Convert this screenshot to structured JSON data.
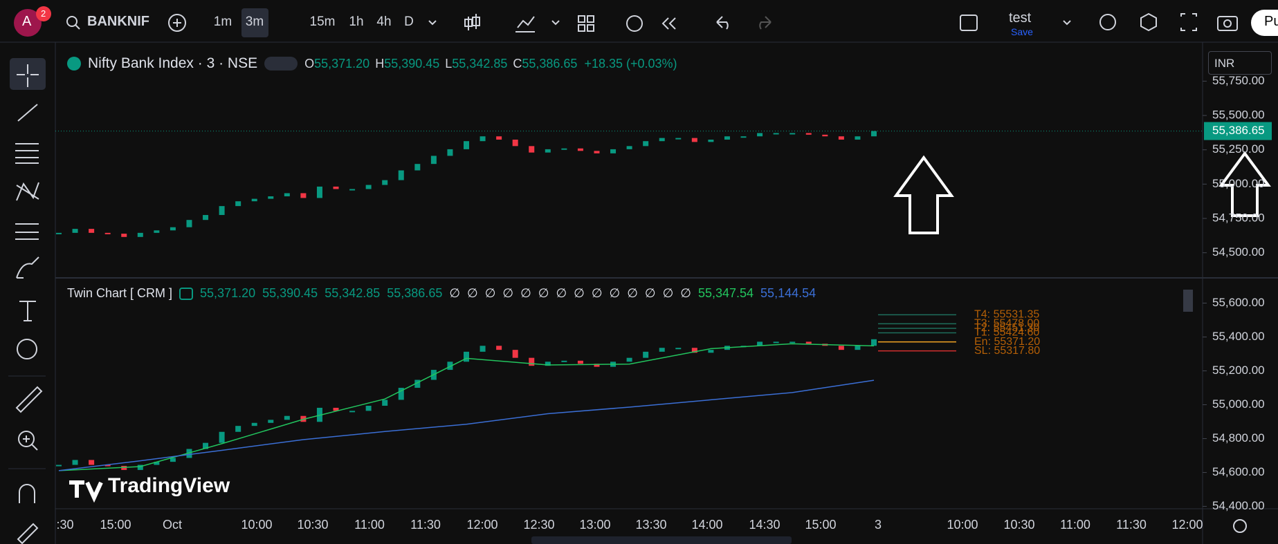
{
  "topbar": {
    "avatar": "A",
    "badge": "2",
    "symbol": "BANKNIF",
    "intervals": [
      "1m",
      "3m",
      "15m",
      "1h",
      "4h",
      "D"
    ],
    "active_interval": "3m",
    "layout_name": "test",
    "save": "Save",
    "publish": "Pu"
  },
  "currency": "INR",
  "watermark": "TradingView",
  "chart_data": [
    {
      "type": "candlestick",
      "title": "Nifty Bank Index · 3 · NSE",
      "ohlc": [
        {
          "key": "O",
          "text": "55,371.20"
        },
        {
          "key": "H",
          "text": "55,390.45"
        },
        {
          "key": "L",
          "text": "55,342.85"
        },
        {
          "key": "C",
          "text": "55,386.65"
        }
      ],
      "change": "+18.35 (+0.03%)",
      "values": [
        54645,
        54674,
        54645,
        54639,
        54615,
        54645,
        54663,
        54686,
        54739,
        54775,
        54840,
        54875,
        54893,
        54911,
        54934,
        54899,
        54982,
        54964,
        54964,
        54994,
        55029,
        55100,
        55147,
        55206,
        55254,
        55313,
        55348,
        55324,
        55277,
        55230,
        55254,
        55260,
        55242,
        55224,
        55254,
        55277,
        55313,
        55336,
        55336,
        55307,
        55324,
        55348,
        55348,
        55372,
        55372,
        55372,
        55360,
        55348,
        55324,
        55348,
        55386.65
      ],
      "up_color": "#089981",
      "down_color": "#f23645",
      "last_price": {
        "value": 55386.65,
        "label": "55,386.65"
      },
      "ylim": [
        54317,
        56034
      ],
      "yticks": [
        {
          "value": 54500,
          "label": "54,500.00"
        },
        {
          "value": 54750,
          "label": "54,750.00"
        },
        {
          "value": 55000,
          "label": "55,000.00"
        },
        {
          "value": 55250,
          "label": "55,250.00"
        },
        {
          "value": 55500,
          "label": "55,500.00"
        },
        {
          "value": 55750,
          "label": "55,750.00"
        }
      ]
    },
    {
      "type": "candlestick",
      "title": "Twin Chart [ CRM ]",
      "ohlc_values": [
        "55,371.20",
        "55,390.45",
        "55,342.85",
        "55,386.65"
      ],
      "empty_markers": [
        "∅",
        "∅",
        "∅",
        "∅",
        "∅",
        "∅",
        "∅",
        "∅",
        "∅",
        "∅",
        "∅",
        "∅",
        "∅",
        "∅"
      ],
      "values": [
        54645,
        54674,
        54645,
        54639,
        54615,
        54645,
        54663,
        54686,
        54739,
        54775,
        54840,
        54875,
        54893,
        54911,
        54934,
        54899,
        54982,
        54964,
        54964,
        54994,
        55029,
        55100,
        55147,
        55206,
        55254,
        55313,
        55348,
        55324,
        55277,
        55230,
        55254,
        55260,
        55242,
        55224,
        55254,
        55277,
        55313,
        55336,
        55336,
        55307,
        55324,
        55348,
        55348,
        55372,
        55372,
        55372,
        55360,
        55348,
        55324,
        55348,
        55386.65
      ],
      "up_color": "#089981",
      "down_color": "#f23645",
      "lines": [
        {
          "color": "#22c55e",
          "values": [
            54611,
            54635,
            54770,
            54914,
            55034,
            55274,
            55235,
            55240,
            55331,
            55360,
            55347.54
          ],
          "legend": {
            "value": 55347.54,
            "label": "55,347.54"
          }
        },
        {
          "color": "#3b6fd6",
          "values": [
            54611,
            54669,
            54731,
            54794,
            54842,
            54885,
            54947,
            54986,
            55029,
            55072,
            55144.54
          ],
          "legend": {
            "value": 55144.54,
            "label": "55,144.54"
          }
        }
      ],
      "levels": [
        {
          "label": "T4: 55531.35",
          "value": 55531.35,
          "color": "#1f6f5c"
        },
        {
          "label": "T3: 55478.00",
          "value": 55478.0,
          "color": "#1f6f5c"
        },
        {
          "label": "T2: 55451.30",
          "value": 55451.3,
          "color": "#1f6f5c"
        },
        {
          "label": "T1: 55424.60",
          "value": 55424.6,
          "color": "#1f6f5c"
        },
        {
          "label": "En: 55371.20",
          "value": 55371.2,
          "color": "#f5a524"
        },
        {
          "label": "SL: 55317.80",
          "value": 55317.8,
          "color": "#d32f2f"
        }
      ],
      "ylim": [
        54386,
        55749
      ],
      "yticks": [
        {
          "value": 54400,
          "label": "54,400.00"
        },
        {
          "value": 54600,
          "label": "54,600.00"
        },
        {
          "value": 54800,
          "label": "54,800.00"
        },
        {
          "value": 55000,
          "label": "55,000.00"
        },
        {
          "value": 55200,
          "label": "55,200.00"
        },
        {
          "value": 55400,
          "label": "55,400.00"
        },
        {
          "value": 55600,
          "label": "55,600.00"
        }
      ]
    }
  ],
  "time_axis": {
    "labels": [
      ":30",
      "15:00",
      "Oct",
      "10:00",
      "10:30",
      "11:00",
      "11:30",
      "12:00",
      "12:30",
      "13:00",
      "13:30",
      "14:00",
      "14:30",
      "15:00",
      "3",
      "10:00",
      "10:30",
      "11:00",
      "11:30",
      "12:00"
    ]
  }
}
